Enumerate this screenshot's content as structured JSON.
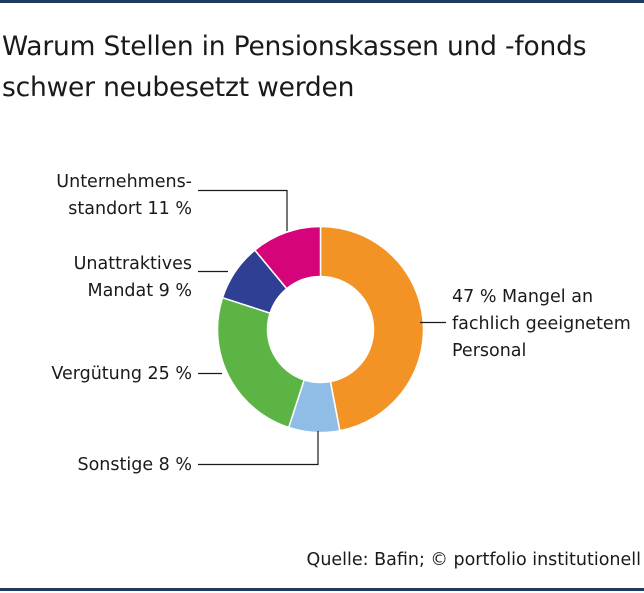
{
  "title_lines": [
    "Warum Stellen in Pensionskassen und -fonds",
    "schwer neubesetzt werden"
  ],
  "source": "Quelle: Bafin; © portfolio institutionell",
  "colors": {
    "rule": "#1f3a5f",
    "leader": "#1a1a1a"
  },
  "chart_data": {
    "type": "pie",
    "donut": true,
    "title": "Warum Stellen in Pensionskassen und -fonds schwer neubesetzt werden",
    "unit": "%",
    "start_angle_deg": 0,
    "direction": "clockwise",
    "slices": [
      {
        "value": 47,
        "label_lines": [
          "47 % Mangel an",
          "fachlich geeignetem",
          "Personal"
        ],
        "color": "#f39325"
      },
      {
        "value": 8,
        "label_lines": [
          "Sonstige 8 %"
        ],
        "color": "#8fbde5"
      },
      {
        "value": 25,
        "label_lines": [
          "Vergütung 25 %"
        ],
        "color": "#5cb445"
      },
      {
        "value": 9,
        "label_lines": [
          "Unattraktives",
          "Mandat 9 %"
        ],
        "color": "#2f3f94"
      },
      {
        "value": 11,
        "label_lines": [
          "Unternehmens-",
          "standort 11 %"
        ],
        "color": "#d6047a"
      }
    ]
  }
}
